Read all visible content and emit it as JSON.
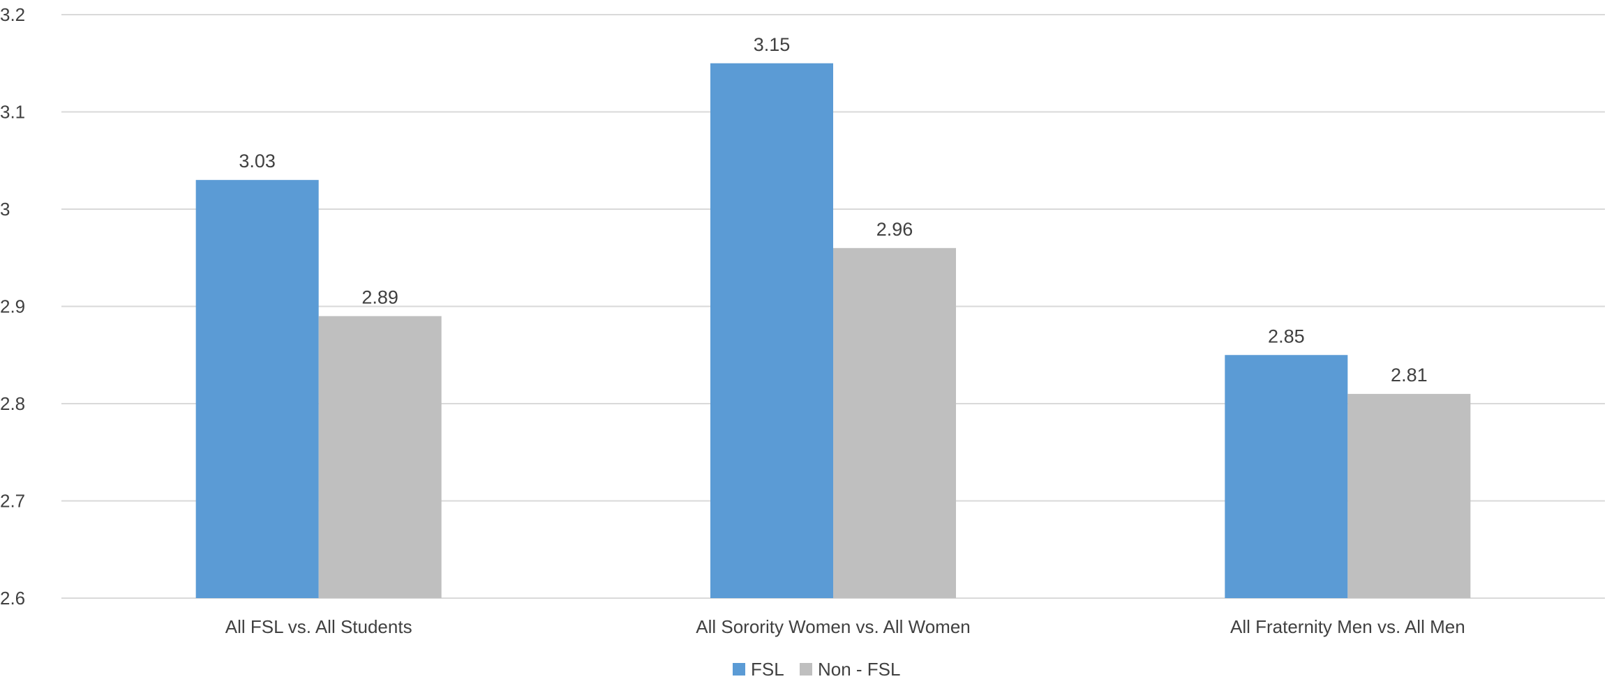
{
  "chart_data": {
    "type": "bar",
    "categories": [
      "All FSL vs. All Students",
      "All Sorority Women vs. All Women",
      "All Fraternity Men vs. All Men"
    ],
    "series": [
      {
        "name": "FSL",
        "values": [
          3.03,
          3.15,
          2.85
        ],
        "color": "#5B9BD5"
      },
      {
        "name": "Non - FSL",
        "values": [
          2.89,
          2.96,
          2.81
        ],
        "color": "#BFBFBF"
      }
    ],
    "y_ticks": [
      "2.6",
      "2.7",
      "2.8",
      "2.9",
      "3",
      "3.1",
      "3.2"
    ],
    "ylim": [
      2.6,
      3.2
    ],
    "grid": true,
    "legend_position": "bottom-center",
    "data_labels": true,
    "colors": {
      "gridline": "#D9D9D9",
      "text": "#404040"
    }
  }
}
